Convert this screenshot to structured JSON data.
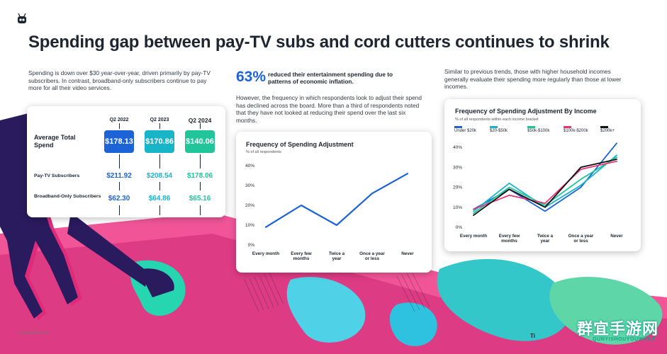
{
  "title": "Spending gap between pay-TV subs and cord cutters continues to shrink",
  "intro_left": "Spending is down over $30 year-over-year, driven primarily by pay-TV subscribers. In contrast, broadband-only subscribers continue to pay more for all their video services.",
  "stat": {
    "value": "63%",
    "text": "reduced their entertainment spending due to patterns of economic inflation."
  },
  "intro_middle": "However, the frequency in which respondents look to adjust their spend has declined across the board. More than a third of respondents noted that they have not looked at reducing their spend over the last six months.",
  "intro_right": "Similar to previous trends, those with higher household incomes generally evaluate their spending more regularly than those at lower incomes.",
  "colors": {
    "blue": "#1d63d8",
    "teal": "#18b5c9",
    "green": "#20c69a",
    "pink": "#e8357a",
    "black": "#111111",
    "magenta": "#d62b7d"
  },
  "spend_table": {
    "quarters": [
      "Q2 2022",
      "Q2 2023",
      "Q2 2024"
    ],
    "rows": [
      {
        "label": "Average Total Spend",
        "values": [
          "$178.13",
          "$170.86",
          "$140.06"
        ]
      },
      {
        "label": "Pay-TV Subscribers",
        "values": [
          "$211.92",
          "$208.54",
          "$178.06"
        ]
      },
      {
        "label": "Broadband-Only Subscribers",
        "values": [
          "$62.30",
          "$64.86",
          "$65.16"
        ]
      }
    ]
  },
  "chart_data": [
    {
      "type": "line",
      "title": "Frequency of Spending Adjustment",
      "subtitle": "% of all respondents",
      "categories": [
        "Every month",
        "Every few months",
        "Twice a year",
        "Once a year or less",
        "Never"
      ],
      "series": [
        {
          "values": [
            9,
            20,
            10,
            26,
            36
          ]
        }
      ],
      "ylim": [
        0,
        40
      ],
      "yticks": [
        "0%",
        "10%",
        "20%",
        "30%",
        "40%"
      ],
      "grid": false,
      "color": "#1d63d8"
    },
    {
      "type": "line",
      "title": "Frequency of Spending Adjustment By Income",
      "subtitle": "% of all respondents within each income bracket",
      "categories": [
        "Every month",
        "Every few months",
        "Twice a year",
        "Once a year or less",
        "Never"
      ],
      "series": [
        {
          "name": "Under $20k",
          "color": "#1d63d8",
          "values": [
            9,
            19,
            8,
            20,
            42
          ]
        },
        {
          "name": "$20-$50k",
          "color": "#18b5c9",
          "values": [
            8,
            22,
            10,
            21,
            36
          ]
        },
        {
          "name": "$50k-$100k",
          "color": "#20c69a",
          "values": [
            7,
            20,
            11,
            24,
            35
          ]
        },
        {
          "name": "$100k-$200k",
          "color": "#e8357a",
          "values": [
            9,
            16,
            12,
            29,
            33
          ]
        },
        {
          "name": "$200k+",
          "color": "#111111",
          "values": [
            6,
            19,
            10,
            30,
            34
          ]
        }
      ],
      "ylim": [
        0,
        40
      ],
      "yticks": [
        "0%",
        "10%",
        "20%",
        "30%",
        "40%"
      ],
      "grid": false,
      "legend": "top"
    }
  ],
  "footer": {
    "copyright": "© 2024 TiVo Inc.",
    "partial": "Ti"
  },
  "watermark": {
    "main": "群宜手游网",
    "sub": "QUNYISHOUYOUWANG"
  }
}
